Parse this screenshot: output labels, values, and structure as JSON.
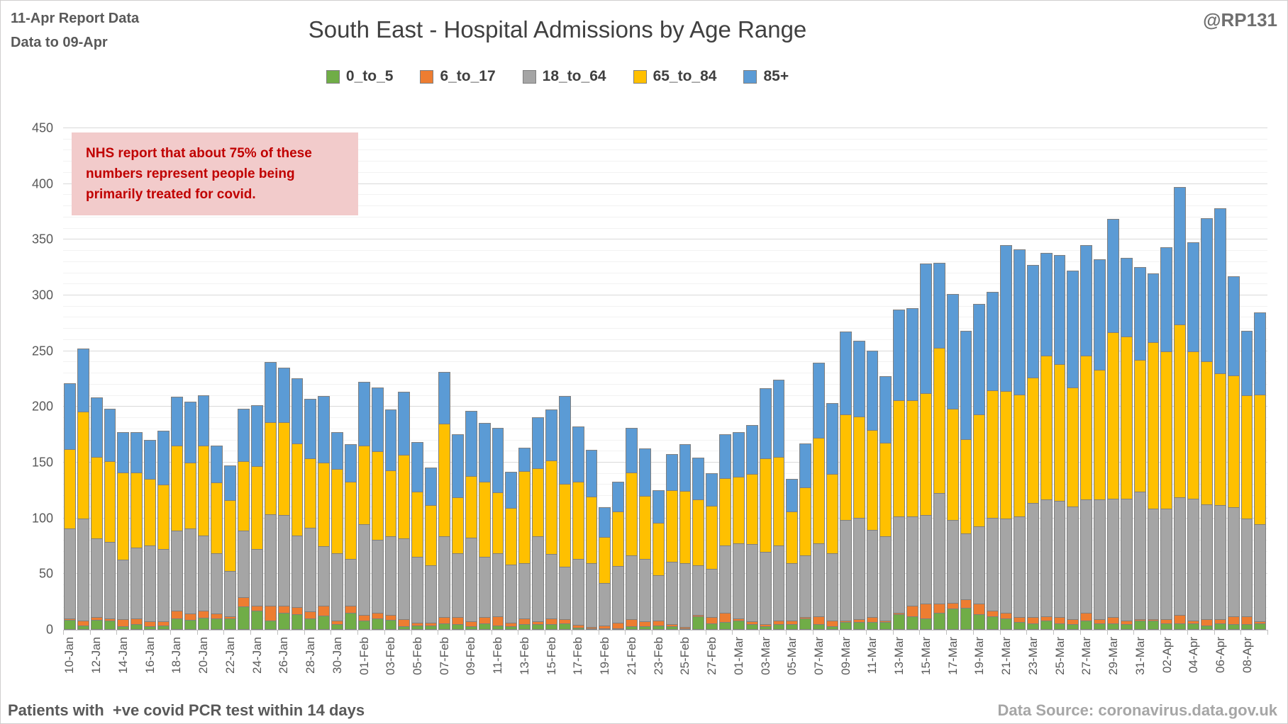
{
  "header": {
    "report_line1": "11-Apr Report Data",
    "report_line2": "Data to 09-Apr",
    "title": "South East - Hospital Admissions by Age Range",
    "handle": "@RP131"
  },
  "legend": [
    {
      "label": "0_to_5",
      "color": "#70AD47"
    },
    {
      "label": "6_to_17",
      "color": "#ED7D31"
    },
    {
      "label": "18_to_64",
      "color": "#A5A5A5"
    },
    {
      "label": "65_to_84",
      "color": "#FFC000"
    },
    {
      "label": "85+",
      "color": "#5B9BD5"
    }
  ],
  "annotation": {
    "lines": [
      "NHS report that about 75% of these",
      "numbers represent people being",
      "primarily treated for covid."
    ],
    "bg": "#F2CBCB",
    "color": "#C00000"
  },
  "axis": {
    "y_min": 0,
    "y_max": 450,
    "y_major_step": 50,
    "y_minor_step": 10,
    "x_label_every": 2
  },
  "footer": {
    "left": "Patients with  +ve covid PCR test within 14 days",
    "right": "Data Source: coronavirus.data.gov.uk"
  },
  "chart_data": {
    "type": "bar",
    "stacked": true,
    "title": "South East - Hospital Admissions by Age Range",
    "xlabel": "",
    "ylabel": "",
    "ylim": [
      0,
      450
    ],
    "grid": "horizontal minor every 10, major every 50",
    "legend_position": "top",
    "categories": [
      "10-Jan",
      "11-Jan",
      "12-Jan",
      "13-Jan",
      "14-Jan",
      "15-Jan",
      "16-Jan",
      "17-Jan",
      "18-Jan",
      "19-Jan",
      "20-Jan",
      "21-Jan",
      "22-Jan",
      "23-Jan",
      "24-Jan",
      "25-Jan",
      "26-Jan",
      "27-Jan",
      "28-Jan",
      "29-Jan",
      "30-Jan",
      "31-Jan",
      "01-Feb",
      "02-Feb",
      "03-Feb",
      "04-Feb",
      "05-Feb",
      "06-Feb",
      "07-Feb",
      "08-Feb",
      "09-Feb",
      "10-Feb",
      "11-Feb",
      "12-Feb",
      "13-Feb",
      "14-Feb",
      "15-Feb",
      "16-Feb",
      "17-Feb",
      "18-Feb",
      "19-Feb",
      "20-Feb",
      "21-Feb",
      "22-Feb",
      "23-Feb",
      "24-Feb",
      "25-Feb",
      "26-Feb",
      "27-Feb",
      "28-Feb",
      "01-Mar",
      "02-Mar",
      "03-Mar",
      "04-Mar",
      "05-Mar",
      "06-Mar",
      "07-Mar",
      "08-Mar",
      "09-Mar",
      "10-Mar",
      "11-Mar",
      "12-Mar",
      "13-Mar",
      "14-Mar",
      "15-Mar",
      "16-Mar",
      "17-Mar",
      "18-Mar",
      "19-Mar",
      "20-Mar",
      "21-Mar",
      "22-Mar",
      "23-Mar",
      "24-Mar",
      "25-Mar",
      "26-Mar",
      "27-Mar",
      "28-Mar",
      "29-Mar",
      "30-Mar",
      "31-Mar",
      "01-Apr",
      "02-Apr",
      "03-Apr",
      "04-Apr",
      "05-Apr",
      "06-Apr",
      "07-Apr",
      "08-Apr",
      "09-Apr"
    ],
    "series": [
      {
        "name": "0_to_5",
        "color": "#70AD47",
        "values": [
          9,
          4,
          9,
          8,
          3,
          5,
          3,
          4,
          10,
          9,
          11,
          10,
          10,
          21,
          17,
          8,
          15,
          14,
          10,
          13,
          5,
          15,
          8,
          10,
          9,
          3,
          4,
          4,
          6,
          5,
          3,
          6,
          4,
          3,
          5,
          5,
          5,
          6,
          2,
          1,
          1,
          1,
          3,
          3,
          4,
          3,
          1,
          12,
          6,
          7,
          8,
          5,
          3,
          5,
          5,
          10,
          5,
          3,
          7,
          7,
          7,
          7,
          14,
          12,
          10,
          15,
          19,
          20,
          14,
          12,
          10,
          7,
          6,
          8,
          6,
          5,
          8,
          6,
          6,
          5,
          8,
          8,
          6,
          6,
          6,
          4,
          6,
          5,
          5,
          6
        ]
      },
      {
        "name": "6_to_17",
        "color": "#ED7D31",
        "values": [
          2,
          5,
          3,
          3,
          7,
          6,
          5,
          4,
          8,
          6,
          7,
          5,
          3,
          9,
          5,
          14,
          7,
          7,
          7,
          9,
          4,
          7,
          6,
          6,
          5,
          7,
          3,
          3,
          6,
          7,
          5,
          6,
          9,
          4,
          6,
          3,
          6,
          4,
          3,
          2,
          3,
          6,
          7,
          5,
          5,
          3,
          2,
          2,
          6,
          9,
          3,
          3,
          3,
          4,
          4,
          2,
          8,
          6,
          2,
          3,
          5,
          2,
          2,
          10,
          14,
          9,
          6,
          8,
          10,
          6,
          6,
          5,
          6,
          5,
          6,
          5,
          8,
          4,
          6,
          4,
          2,
          2,
          4,
          8,
          3,
          6,
          4,
          8,
          8,
          2
        ]
      },
      {
        "name": "18_to_64",
        "color": "#A5A5A5",
        "values": [
          81,
          92,
          71,
          69,
          54,
          64,
          69,
          66,
          72,
          77,
          68,
          55,
          41,
          60,
          52,
          83,
          82,
          65,
          76,
          54,
          61,
          43,
          82,
          66,
          71,
          73,
          60,
          52,
          73,
          58,
          76,
          55,
          57,
          53,
          50,
          77,
          58,
          48,
          60,
          58,
          39,
          51,
          58,
          57,
          41,
          56,
          58,
          45,
          44,
          61,
          68,
          70,
          65,
          68,
          52,
          56,
          66,
          61,
          91,
          92,
          79,
          76,
          87,
          81,
          80,
          100,
          75,
          60,
          70,
          84,
          85,
          91,
          103,
          105,
          105,
          102,
          102,
          108,
          107,
          110,
          115,
          100,
          100,
          106,
          110,
          104,
          103,
          98,
          88,
          88
        ]
      },
      {
        "name": "65_to_84",
        "color": "#FFC000",
        "values": [
          72,
          97,
          74,
          73,
          79,
          68,
          60,
          58,
          77,
          60,
          81,
          64,
          64,
          63,
          75,
          83,
          84,
          83,
          63,
          76,
          76,
          70,
          71,
          80,
          60,
          76,
          59,
          55,
          102,
          51,
          56,
          68,
          55,
          51,
          83,
          62,
          85,
          75,
          70,
          60,
          42,
          50,
          75,
          57,
          48,
          65,
          65,
          60,
          57,
          61,
          60,
          64,
          85,
          80,
          47,
          62,
          95,
          72,
          95,
          91,
          90,
          85,
          105,
          105,
          110,
          131,
          100,
          85,
          101,
          115,
          115,
          110,
          113,
          130,
          123,
          107,
          130,
          117,
          150,
          146,
          119,
          150,
          142,
          156,
          133,
          129,
          119,
          119,
          111,
          117
        ]
      },
      {
        "name": "85+",
        "color": "#5B9BD5",
        "values": [
          60,
          57,
          54,
          48,
          37,
          37,
          36,
          49,
          45,
          55,
          46,
          34,
          32,
          48,
          55,
          55,
          50,
          59,
          54,
          60,
          34,
          34,
          58,
          58,
          55,
          57,
          45,
          34,
          47,
          57,
          59,
          53,
          59,
          33,
          22,
          46,
          46,
          79,
          50,
          43,
          27,
          27,
          41,
          43,
          30,
          33,
          43,
          38,
          30,
          40,
          41,
          44,
          63,
          70,
          30,
          40,
          68,
          64,
          75,
          69,
          72,
          60,
          82,
          83,
          117,
          77,
          104,
          98,
          100,
          89,
          132,
          131,
          102,
          93,
          99,
          106,
          100,
          100,
          102,
          71,
          84,
          62,
          94,
          124,
          98,
          129,
          149,
          90,
          59,
          74
        ]
      }
    ]
  }
}
